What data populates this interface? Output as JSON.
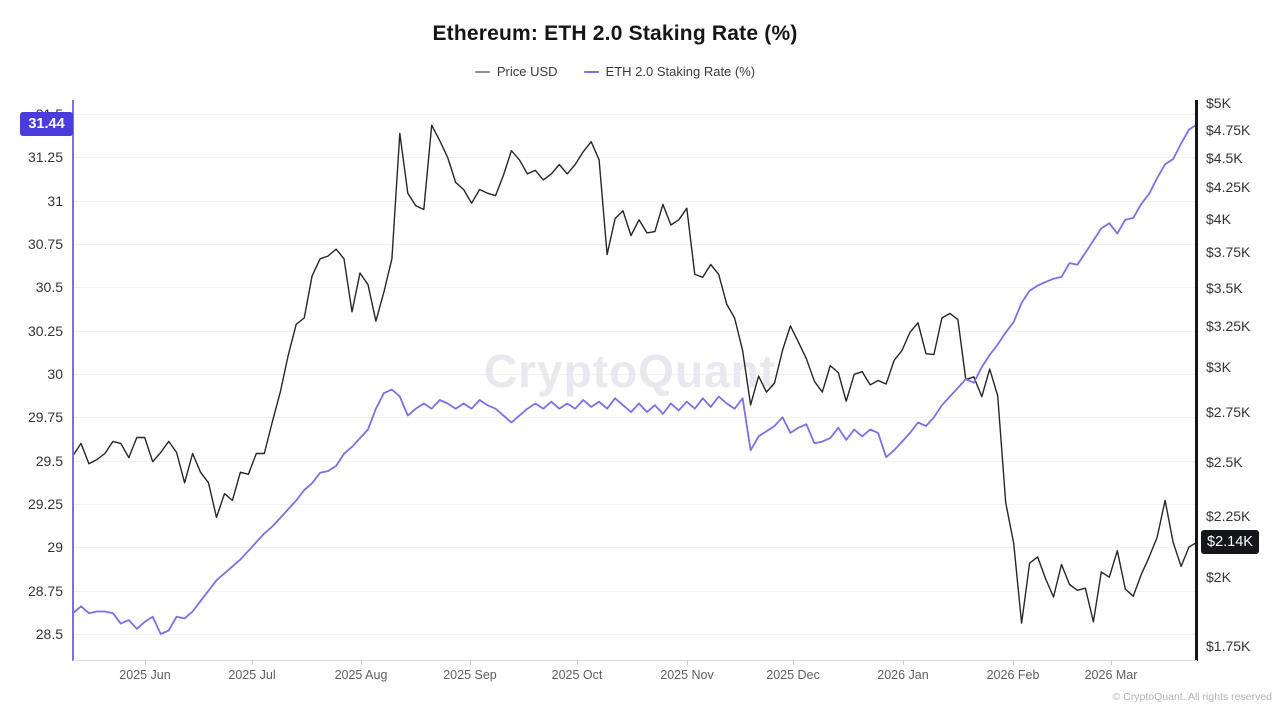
{
  "header": {
    "title": "Ethereum: ETH 2.0 Staking Rate (%)",
    "legend": [
      {
        "label": "Price USD",
        "swatch_color": "#8f8c99"
      },
      {
        "label": "ETH 2.0 Staking Rate (%)",
        "swatch_color": "#7b70e4"
      }
    ]
  },
  "badges": {
    "left": {
      "text": "31.44",
      "value": 31.44,
      "bg": "#4a3bdb"
    },
    "right": {
      "text": "$2.14K",
      "value": 2140,
      "bg": "#15161a"
    }
  },
  "watermark": "CryptoQuant",
  "footer": {
    "copyright": "© CryptoQuant. All rights reserved"
  },
  "chart_data": {
    "type": "line",
    "title": "Ethereum: ETH 2.0 Staking Rate (%)",
    "x_tick_labels": [
      "2025 Jun",
      "2025 Jul",
      "2025 Aug",
      "2025 Sep",
      "2025 Oct",
      "2025 Nov",
      "2025 Dec",
      "2026 Jan",
      "2026 Feb",
      "2026 Mar"
    ],
    "y_left": {
      "series": "ETH 2.0 Staking Rate (%)",
      "scale": "linear",
      "range": [
        28.5,
        31.5
      ],
      "ticks": [
        31.5,
        31.25,
        31,
        30.75,
        30.5,
        30.25,
        30,
        29.75,
        29.5,
        29.25,
        29,
        28.75,
        28.5
      ],
      "last_value": 31.44
    },
    "y_right": {
      "series": "Price USD",
      "scale": "log",
      "range": [
        1750,
        5000
      ],
      "ticks": [
        {
          "label": "$5K",
          "value": 5000
        },
        {
          "label": "$4.75K",
          "value": 4750
        },
        {
          "label": "$4.5K",
          "value": 4500
        },
        {
          "label": "$4.25K",
          "value": 4250
        },
        {
          "label": "$4K",
          "value": 4000
        },
        {
          "label": "$3.75K",
          "value": 3750
        },
        {
          "label": "$3.5K",
          "value": 3500
        },
        {
          "label": "$3.25K",
          "value": 3250
        },
        {
          "label": "$3K",
          "value": 3000
        },
        {
          "label": "$2.75K",
          "value": 2750
        },
        {
          "label": "$2.5K",
          "value": 2500
        },
        {
          "label": "$2.25K",
          "value": 2250
        },
        {
          "label": "$2K",
          "value": 2000
        },
        {
          "label": "$1.75K",
          "value": 1750
        }
      ],
      "last_value": 2140,
      "last_value_label": "$2.14K"
    },
    "series": [
      {
        "name": "Price USD",
        "axis": "right",
        "color": "#26262b",
        "width": 1.4,
        "values": [
          2530,
          2590,
          2490,
          2510,
          2540,
          2600,
          2590,
          2520,
          2620,
          2620,
          2500,
          2545,
          2600,
          2545,
          2400,
          2540,
          2450,
          2400,
          2245,
          2350,
          2320,
          2450,
          2440,
          2540,
          2540,
          2700,
          2860,
          3070,
          3260,
          3300,
          3580,
          3700,
          3720,
          3770,
          3700,
          3340,
          3600,
          3520,
          3280,
          3470,
          3700,
          4715,
          4200,
          4100,
          4070,
          4790,
          4650,
          4500,
          4290,
          4230,
          4120,
          4230,
          4200,
          4180,
          4350,
          4560,
          4480,
          4360,
          4390,
          4310,
          4360,
          4440,
          4360,
          4440,
          4550,
          4640,
          4480,
          3730,
          4000,
          4060,
          3870,
          3990,
          3890,
          3900,
          4110,
          3950,
          3990,
          4080,
          3590,
          3570,
          3660,
          3590,
          3390,
          3300,
          3100,
          2790,
          2950,
          2860,
          2910,
          3100,
          3250,
          3150,
          3050,
          2920,
          2860,
          3010,
          2970,
          2810,
          2960,
          2975,
          2900,
          2925,
          2905,
          3040,
          3100,
          3210,
          3270,
          3080,
          3075,
          3300,
          3330,
          3290,
          2930,
          2945,
          2835,
          2990,
          2840,
          2310,
          2135,
          1830,
          2055,
          2080,
          1995,
          1925,
          2050,
          1972,
          1950,
          1958,
          1835,
          2020,
          2000,
          2105,
          1955,
          1928,
          2010,
          2080,
          2160,
          2320,
          2140,
          2042,
          2120,
          2140
        ]
      },
      {
        "name": "ETH 2.0 Staking Rate (%)",
        "axis": "left",
        "color": "#7b70e4",
        "width": 1.8,
        "values": [
          28.62,
          28.66,
          28.62,
          28.63,
          28.63,
          28.62,
          28.56,
          28.58,
          28.53,
          28.57,
          28.6,
          28.5,
          28.52,
          28.6,
          28.59,
          28.63,
          28.69,
          28.75,
          28.81,
          28.85,
          28.89,
          28.93,
          28.98,
          29.03,
          29.08,
          29.12,
          29.17,
          29.22,
          29.27,
          29.33,
          29.37,
          29.43,
          29.44,
          29.47,
          29.54,
          29.58,
          29.63,
          29.68,
          29.8,
          29.89,
          29.91,
          29.87,
          29.76,
          29.8,
          29.83,
          29.8,
          29.85,
          29.83,
          29.8,
          29.83,
          29.8,
          29.85,
          29.82,
          29.8,
          29.76,
          29.72,
          29.76,
          29.8,
          29.83,
          29.8,
          29.84,
          29.8,
          29.83,
          29.8,
          29.85,
          29.81,
          29.84,
          29.8,
          29.86,
          29.82,
          29.78,
          29.83,
          29.78,
          29.82,
          29.77,
          29.83,
          29.79,
          29.84,
          29.8,
          29.86,
          29.81,
          29.87,
          29.83,
          29.8,
          29.86,
          29.56,
          29.64,
          29.67,
          29.7,
          29.75,
          29.66,
          29.69,
          29.71,
          29.6,
          29.61,
          29.63,
          29.69,
          29.62,
          29.68,
          29.64,
          29.68,
          29.66,
          29.52,
          29.56,
          29.61,
          29.66,
          29.72,
          29.7,
          29.75,
          29.82,
          29.87,
          29.92,
          29.97,
          29.95,
          30.04,
          30.11,
          30.17,
          30.24,
          30.3,
          30.41,
          30.48,
          30.51,
          30.53,
          30.55,
          30.56,
          30.64,
          30.63,
          30.7,
          30.77,
          30.84,
          30.87,
          30.81,
          30.89,
          30.9,
          30.98,
          31.04,
          31.13,
          31.21,
          31.24,
          31.33,
          31.41,
          31.44
        ]
      }
    ]
  }
}
